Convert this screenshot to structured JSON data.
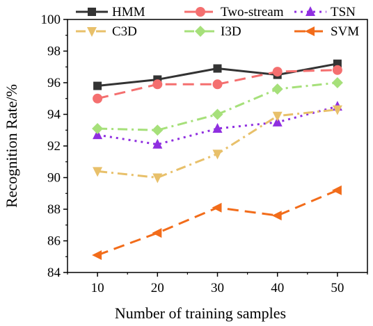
{
  "chart_data": {
    "type": "line",
    "x": [
      10,
      20,
      30,
      40,
      50
    ],
    "xlabel": "Number of training samples",
    "ylabel": "Recognition Rate/%",
    "xlim": [
      5,
      55
    ],
    "ylim": [
      84,
      100
    ],
    "xticks": [
      "10",
      "20",
      "30",
      "40",
      "50"
    ],
    "yticks": [
      "84",
      "86",
      "88",
      "90",
      "92",
      "94",
      "96",
      "98",
      "100"
    ],
    "grid": false,
    "legend_position": "top",
    "series": [
      {
        "name": "HMM",
        "values": [
          95.8,
          96.2,
          96.9,
          96.5,
          97.2
        ],
        "color": "#333333",
        "marker": "square",
        "dash": "solid"
      },
      {
        "name": "Two-stream",
        "values": [
          95.0,
          95.9,
          95.9,
          96.7,
          96.8
        ],
        "color": "#f46f6f",
        "marker": "circle",
        "dash": "dash"
      },
      {
        "name": "TSN",
        "values": [
          92.7,
          92.1,
          93.1,
          93.5,
          94.5
        ],
        "color": "#8f2fe0",
        "marker": "triangle-up",
        "dash": "dot"
      },
      {
        "name": "C3D",
        "values": [
          90.4,
          90.0,
          91.5,
          93.9,
          94.3
        ],
        "color": "#e8c06a",
        "marker": "triangle-down",
        "dash": "dashdot"
      },
      {
        "name": "I3D",
        "values": [
          93.1,
          93.0,
          94.0,
          95.6,
          96.0
        ],
        "color": "#a6e07a",
        "marker": "diamond",
        "dash": "dashdot"
      },
      {
        "name": "SVM",
        "values": [
          85.1,
          86.5,
          88.1,
          87.6,
          89.2
        ],
        "color": "#f26c1a",
        "marker": "triangle-left",
        "dash": "dash"
      }
    ]
  }
}
